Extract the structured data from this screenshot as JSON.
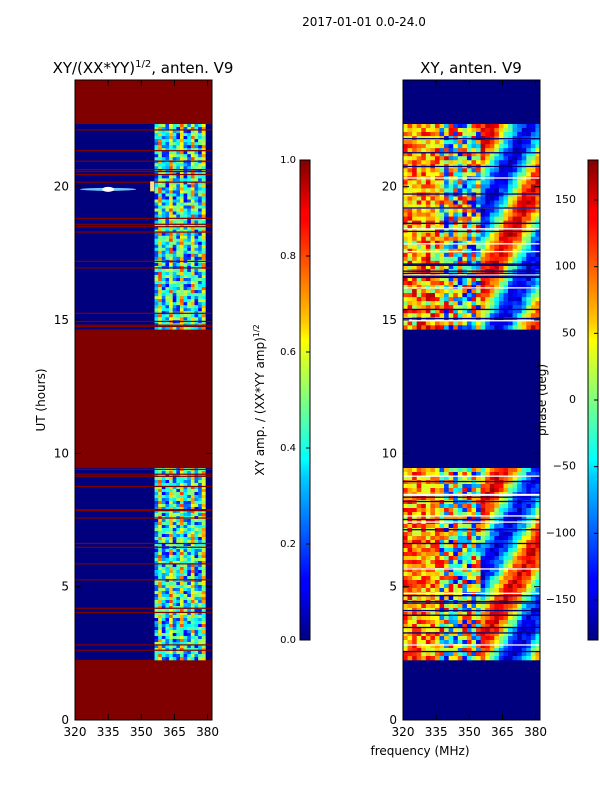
{
  "suptitle": "2017-01-01 0.0-24.0",
  "shared_xlabel": "frequency (MHz)",
  "chart_data": [
    {
      "type": "heatmap",
      "title": "XY/(XX*YY)",
      "title_exp": "1/2",
      "title_suffix": ", anten. V9",
      "xlabel": "",
      "ylabel": "UT (hours)",
      "xlim": [
        320,
        382
      ],
      "ylim": [
        0,
        24
      ],
      "xticks": [
        "320",
        "335",
        "350",
        "365",
        "380"
      ],
      "xtick_values": [
        320,
        335,
        350,
        365,
        380
      ],
      "yticks": [
        "0",
        "5",
        "10",
        "15",
        "20"
      ],
      "ytick_values": [
        0,
        5,
        10,
        15,
        20
      ],
      "background_color": "#800000",
      "data_blocks": [
        [
          2.25,
          9.45
        ],
        [
          14.65,
          22.35
        ]
      ],
      "active_band_mhz": [
        356,
        379
      ],
      "colorbar": {
        "label": "XY amp. / (XX*YY amp)",
        "label_exp": "1/2",
        "range": [
          0.0,
          1.0
        ],
        "ticks": [
          "0.0",
          "0.2",
          "0.4",
          "0.6",
          "0.8",
          "1.0"
        ],
        "tick_values": [
          0.0,
          0.2,
          0.4,
          0.6,
          0.8,
          1.0
        ]
      }
    },
    {
      "type": "heatmap",
      "title": "XY, anten. V9",
      "xlabel": "frequency (MHz)",
      "ylabel": "",
      "xlim": [
        320,
        382
      ],
      "ylim": [
        0,
        24
      ],
      "xticks": [
        "320",
        "335",
        "350",
        "365",
        "380"
      ],
      "xtick_values": [
        320,
        335,
        350,
        365,
        380
      ],
      "yticks": [
        "0",
        "5",
        "10",
        "15",
        "20"
      ],
      "ytick_values": [
        0,
        5,
        10,
        15,
        20
      ],
      "background_color": "#00007f",
      "data_blocks": [
        [
          2.25,
          9.45
        ],
        [
          14.65,
          22.35
        ]
      ],
      "colorbar": {
        "label": "phase (deg)",
        "range": [
          -180,
          180
        ],
        "ticks": [
          "−150",
          "−100",
          "−50",
          "0",
          "50",
          "100",
          "150"
        ],
        "tick_values": [
          -150,
          -100,
          -50,
          0,
          50,
          100,
          150
        ]
      }
    }
  ]
}
